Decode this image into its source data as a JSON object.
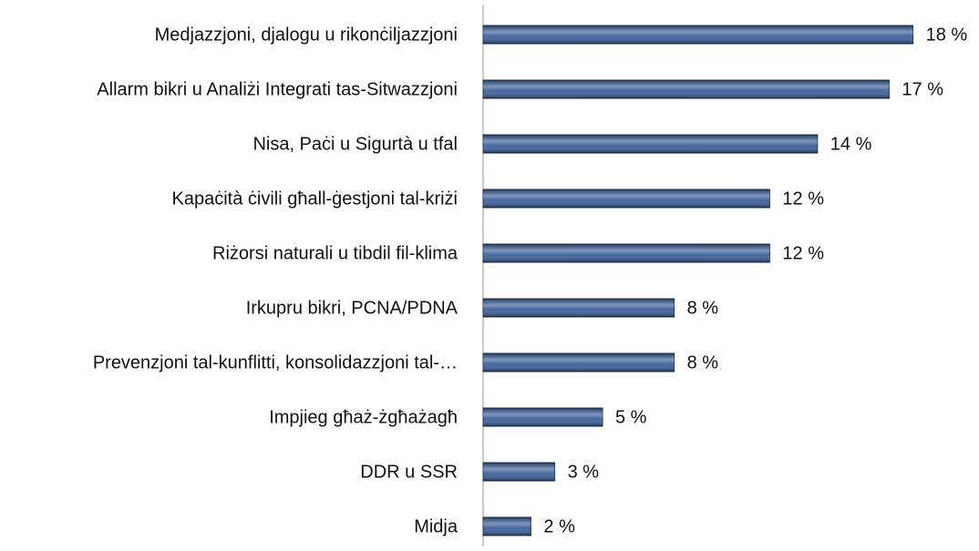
{
  "chart_data": {
    "type": "barh",
    "categories": [
      "Medjazzjoni, djalogu u rikonċiljazzjoni",
      "Allarm bikri u Analiżi Integrati tas-Sitwazzjoni",
      "Nisa, Paċi u Sigurtà u tfal",
      "Kapaċità ċivili għall-ġestjoni tal-kriżi",
      "Riżorsi naturali u tibdil fil-klima",
      "Irkupru bikri, PCNA/PDNA",
      "Prevenzjoni tal-kunflitti, konsolidazzjoni tal-…",
      "Impjieg għaż-żgħażagħ",
      "DDR u SSR",
      "Midja"
    ],
    "values": [
      18,
      17,
      14,
      12,
      12,
      8,
      8,
      5,
      3,
      2
    ],
    "value_labels": [
      "18 %",
      "17 %",
      "14 %",
      "12 %",
      "12 %",
      "8 %",
      "8 %",
      "5 %",
      "3 %",
      "2 %"
    ],
    "color": "#3a5f9a",
    "xlim": [
      0,
      20
    ]
  }
}
